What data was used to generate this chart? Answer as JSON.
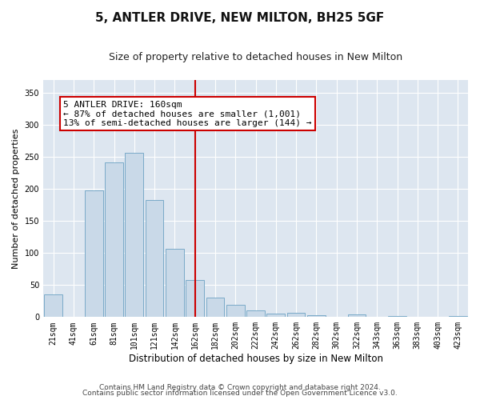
{
  "title": "5, ANTLER DRIVE, NEW MILTON, BH25 5GF",
  "subtitle": "Size of property relative to detached houses in New Milton",
  "xlabel": "Distribution of detached houses by size in New Milton",
  "ylabel": "Number of detached properties",
  "categories": [
    "21sqm",
    "41sqm",
    "61sqm",
    "81sqm",
    "101sqm",
    "121sqm",
    "142sqm",
    "162sqm",
    "182sqm",
    "202sqm",
    "222sqm",
    "242sqm",
    "262sqm",
    "282sqm",
    "302sqm",
    "322sqm",
    "343sqm",
    "363sqm",
    "383sqm",
    "403sqm",
    "423sqm"
  ],
  "values": [
    35,
    0,
    198,
    242,
    257,
    183,
    107,
    58,
    30,
    19,
    10,
    6,
    7,
    3,
    0,
    4,
    0,
    2,
    0,
    0,
    2
  ],
  "bar_color": "#c9d9e8",
  "bar_edge_color": "#7aaac8",
  "highlight_index": 7,
  "highlight_line_color": "#cc0000",
  "annotation_text": "5 ANTLER DRIVE: 160sqm\n← 87% of detached houses are smaller (1,001)\n13% of semi-detached houses are larger (144) →",
  "annotation_box_color": "#ffffff",
  "annotation_box_edge_color": "#cc0000",
  "ylim": [
    0,
    370
  ],
  "yticks": [
    0,
    50,
    100,
    150,
    200,
    250,
    300,
    350
  ],
  "background_color": "#dde6f0",
  "footer_line1": "Contains HM Land Registry data © Crown copyright and database right 2024.",
  "footer_line2": "Contains public sector information licensed under the Open Government Licence v3.0.",
  "title_fontsize": 11,
  "subtitle_fontsize": 9,
  "xlabel_fontsize": 8.5,
  "ylabel_fontsize": 8,
  "tick_fontsize": 7,
  "annotation_fontsize": 8,
  "footer_fontsize": 6.5
}
